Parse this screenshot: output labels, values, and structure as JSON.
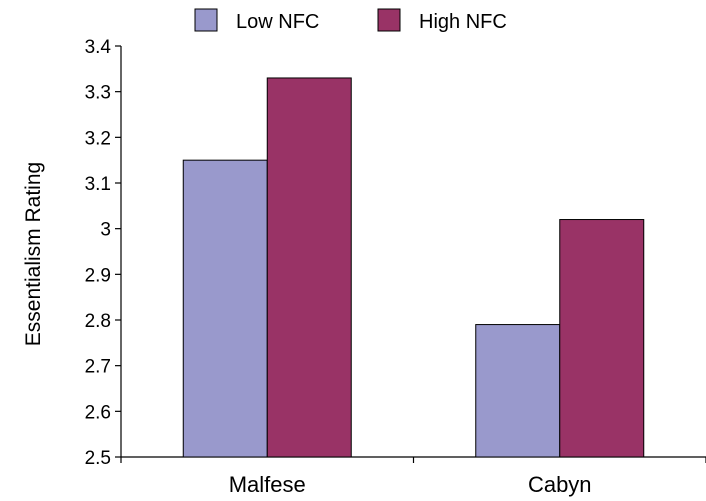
{
  "chart_data": {
    "type": "bar",
    "categories": [
      "Malfese",
      "Cabyn"
    ],
    "series": [
      {
        "name": "Low NFC",
        "values": [
          3.15,
          2.79
        ],
        "color": "#9999cc"
      },
      {
        "name": "High NFC",
        "values": [
          3.33,
          3.02
        ],
        "color": "#993366"
      }
    ],
    "xlabel": "",
    "ylabel": "Essentialism Rating",
    "ylim": [
      2.5,
      3.4
    ],
    "yticks": [
      "2.5",
      "2.6",
      "2.7",
      "2.8",
      "2.9",
      "3",
      "3.1",
      "3.2",
      "3.3",
      "3.4"
    ],
    "grid": false,
    "legend_position": "top"
  }
}
